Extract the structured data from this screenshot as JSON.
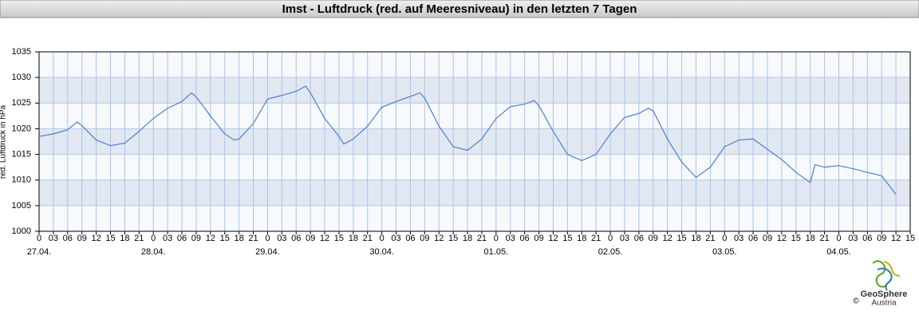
{
  "chart_data": {
    "type": "line",
    "title": "Imst - Luftdruck (red. auf Meeresniveau) in den letzten 7 Tagen",
    "y_label": "red. Luftdruck in hPa",
    "xlim": [
      0,
      183
    ],
    "ylim": [
      1000,
      1035
    ],
    "yticks": [
      1000,
      1005,
      1010,
      1015,
      1020,
      1025,
      1030,
      1035
    ],
    "xticks": [
      0,
      {
        "value": 3,
        "label": "03"
      },
      {
        "value": 6,
        "label": "06"
      },
      {
        "value": 9,
        "label": "09"
      },
      12,
      15,
      18,
      21,
      {
        "value": 24,
        "label": "0"
      },
      {
        "value": 27,
        "label": "03"
      },
      {
        "value": 30,
        "label": "06"
      },
      {
        "value": 33,
        "label": "09"
      },
      {
        "value": 36,
        "label": "12"
      },
      {
        "value": 39,
        "label": "15"
      },
      {
        "value": 42,
        "label": "18"
      },
      {
        "value": 45,
        "label": "21"
      },
      {
        "value": 48,
        "label": "0"
      },
      {
        "value": 51,
        "label": "03"
      },
      {
        "value": 54,
        "label": "06"
      },
      {
        "value": 57,
        "label": "09"
      },
      {
        "value": 60,
        "label": "12"
      },
      {
        "value": 63,
        "label": "15"
      },
      {
        "value": 66,
        "label": "18"
      },
      {
        "value": 69,
        "label": "21"
      },
      {
        "value": 72,
        "label": "0"
      },
      {
        "value": 75,
        "label": "03"
      },
      {
        "value": 78,
        "label": "06"
      },
      {
        "value": 81,
        "label": "09"
      },
      {
        "value": 84,
        "label": "12"
      },
      {
        "value": 87,
        "label": "15"
      },
      {
        "value": 90,
        "label": "18"
      },
      {
        "value": 93,
        "label": "21"
      },
      {
        "value": 96,
        "label": "0"
      },
      {
        "value": 99,
        "label": "03"
      },
      {
        "value": 102,
        "label": "06"
      },
      {
        "value": 105,
        "label": "09"
      },
      {
        "value": 108,
        "label": "12"
      },
      {
        "value": 111,
        "label": "15"
      },
      {
        "value": 114,
        "label": "18"
      },
      {
        "value": 117,
        "label": "21"
      },
      {
        "value": 120,
        "label": "0"
      },
      {
        "value": 123,
        "label": "03"
      },
      {
        "value": 126,
        "label": "06"
      },
      {
        "value": 129,
        "label": "09"
      },
      {
        "value": 132,
        "label": "12"
      },
      {
        "value": 135,
        "label": "15"
      },
      {
        "value": 138,
        "label": "18"
      },
      {
        "value": 141,
        "label": "21"
      },
      {
        "value": 144,
        "label": "0"
      },
      {
        "value": 147,
        "label": "03"
      },
      {
        "value": 150,
        "label": "06"
      },
      {
        "value": 153,
        "label": "09"
      },
      {
        "value": 156,
        "label": "12"
      },
      {
        "value": 159,
        "label": "15"
      },
      {
        "value": 162,
        "label": "18"
      },
      {
        "value": 165,
        "label": "21"
      },
      {
        "value": 168,
        "label": "0"
      },
      {
        "value": 171,
        "label": "03"
      },
      {
        "value": 174,
        "label": "06"
      },
      {
        "value": 177,
        "label": "09"
      },
      {
        "value": 180,
        "label": "12"
      },
      {
        "value": 183,
        "label": "15"
      }
    ],
    "date_ticks": [
      {
        "value": 0,
        "label": "27.04."
      },
      {
        "value": 24,
        "label": "28.04."
      },
      {
        "value": 48,
        "label": "29.04."
      },
      {
        "value": 72,
        "label": "30.04."
      },
      {
        "value": 96,
        "label": "01.05."
      },
      {
        "value": 120,
        "label": "02.05."
      },
      {
        "value": 144,
        "label": "03.05."
      },
      {
        "value": 168,
        "label": "04.05."
      }
    ],
    "grid": true,
    "color": "#4a7fd4",
    "x": [
      0,
      3,
      6,
      8,
      9,
      12,
      15,
      18,
      21,
      24,
      27,
      30,
      32,
      33,
      36,
      39,
      41,
      42,
      45,
      48,
      51,
      54,
      56,
      57,
      60,
      63,
      64,
      66,
      69,
      72,
      75,
      78,
      80,
      81,
      84,
      87,
      90,
      93,
      96,
      99,
      102,
      104,
      105,
      108,
      111,
      114,
      117,
      120,
      123,
      126,
      128,
      129,
      132,
      135,
      138,
      141,
      144,
      147,
      150,
      153,
      156,
      159,
      162,
      163,
      165,
      168,
      171,
      174,
      177,
      180
    ],
    "values": [
      1018.5,
      1019.0,
      1019.8,
      1021.3,
      1020.6,
      1017.8,
      1016.7,
      1017.2,
      1019.5,
      1022.0,
      1024.0,
      1025.3,
      1027.0,
      1026.2,
      1022.5,
      1019.0,
      1017.8,
      1018.0,
      1021.0,
      1025.8,
      1026.5,
      1027.3,
      1028.3,
      1027.0,
      1022.0,
      1018.5,
      1017.0,
      1018.0,
      1020.5,
      1024.2,
      1025.3,
      1026.3,
      1027.0,
      1026.0,
      1020.5,
      1016.5,
      1015.8,
      1018.0,
      1022.0,
      1024.3,
      1024.8,
      1025.5,
      1024.5,
      1019.5,
      1015.0,
      1013.8,
      1015.0,
      1019.0,
      1022.2,
      1023.0,
      1024.0,
      1023.5,
      1018.0,
      1013.5,
      1010.5,
      1012.5,
      1016.5,
      1017.8,
      1018.0,
      1016.0,
      1014.0,
      1011.5,
      1009.5,
      1013.0,
      1012.5,
      1012.8,
      1012.2,
      1011.5,
      1010.8,
      1007.2
    ]
  },
  "logo": {
    "name": "GeoSphere",
    "sub": "Austria",
    "copyright": "©"
  }
}
